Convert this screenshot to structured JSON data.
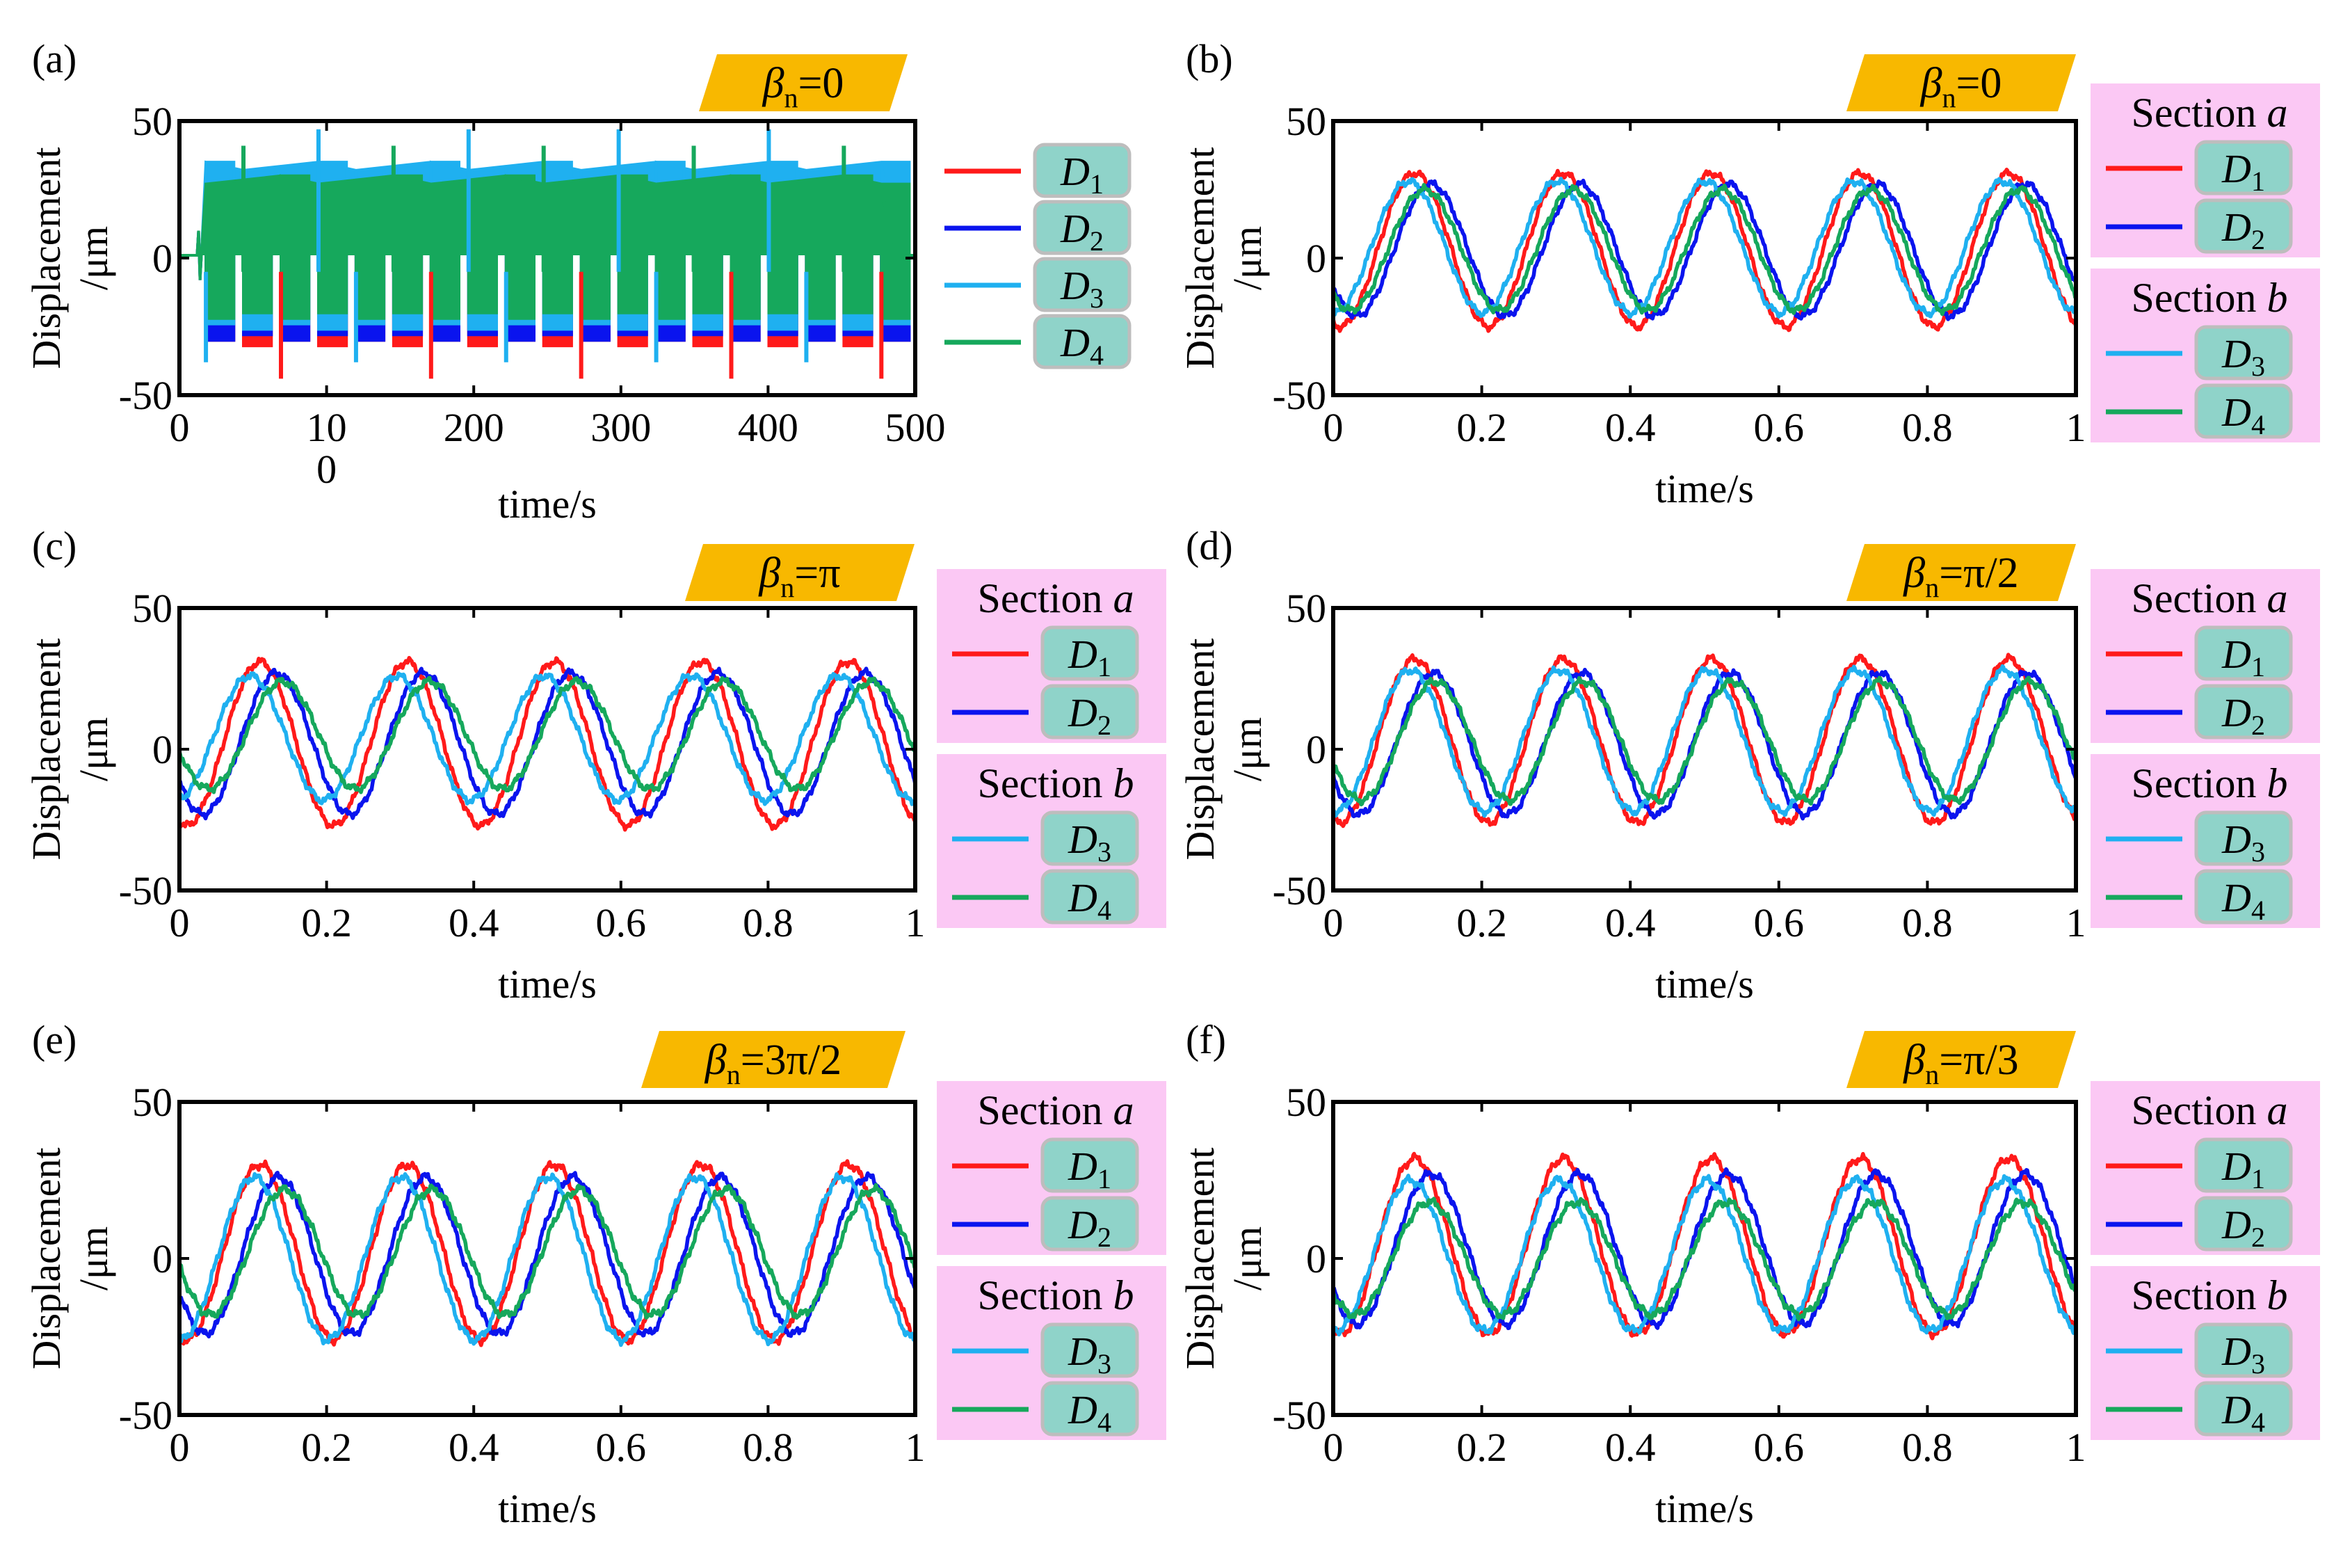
{
  "colors": {
    "D1": "#ff1a1a",
    "D2": "#0a14ee",
    "D3": "#1fb0f0",
    "D4": "#16a85c",
    "badge_bg": "#f8b800",
    "legend_bg": "#fbc8f4",
    "legend_key_bg": "#8fd3c9",
    "legend_key_border": "#bdbdbd"
  },
  "chart_data": [
    {
      "type": "line",
      "panel_label": "(a)",
      "badge": {
        "symbol": "β",
        "sub": "n",
        "value": "=0"
      },
      "xlabel": "time/s",
      "ylabel_1": "Displacement",
      "ylabel_2": "/μm",
      "xlim": [
        0,
        500
      ],
      "ylim": [
        -50,
        50
      ],
      "x_ticks": [
        "0",
        "10\n0",
        "200",
        "300",
        "400",
        "500"
      ],
      "x_tick_values": [
        0,
        100,
        200,
        300,
        400,
        500
      ],
      "y_ticks": [
        "-50",
        "0",
        "50"
      ],
      "y_tick_values": [
        -50,
        0,
        50
      ],
      "signal": "burst",
      "series": [
        {
          "name": "D1",
          "sub": "1",
          "amplitude": 30,
          "min": -30
        },
        {
          "name": "D2",
          "sub": "2",
          "amplitude": 28,
          "min": -28
        },
        {
          "name": "D3",
          "sub": "3",
          "amplitude": 32,
          "min": -24
        },
        {
          "name": "D4",
          "sub": "4",
          "amplitude": 27,
          "min": -20
        }
      ],
      "legend": {
        "sections": []
      }
    },
    {
      "type": "line",
      "panel_label": "(b)",
      "badge": {
        "symbol": "β",
        "sub": "n",
        "value": "=0"
      },
      "xlabel": "time/s",
      "ylabel_1": "Displacement",
      "ylabel_2": "/μm",
      "xlim": [
        0,
        1
      ],
      "ylim": [
        -50,
        50
      ],
      "x_ticks": [
        "0",
        "0.2",
        "0.4",
        "0.6",
        "0.8",
        "1"
      ],
      "x_tick_values": [
        0,
        0.2,
        0.4,
        0.6,
        0.8,
        1
      ],
      "y_ticks": [
        "-50",
        "0",
        "50"
      ],
      "y_tick_values": [
        -50,
        0,
        50
      ],
      "signal": "sine",
      "frequency_hz": 5,
      "series": [
        {
          "name": "D1",
          "sub": "1",
          "amplitude": 28,
          "offset": 3,
          "phase_deg": 0
        },
        {
          "name": "D2",
          "sub": "2",
          "amplitude": 24,
          "offset": 3,
          "phase_deg": -40
        },
        {
          "name": "D3",
          "sub": "3",
          "amplitude": 24,
          "offset": 4,
          "phase_deg": 15
        },
        {
          "name": "D4",
          "sub": "4",
          "amplitude": 22,
          "offset": 3,
          "phase_deg": -25
        }
      ],
      "legend": {
        "sections": [
          {
            "title": "Section ",
            "title_var": "a",
            "items": [
              "D1",
              "D2"
            ]
          },
          {
            "title": "Section ",
            "title_var": "b",
            "items": [
              "D3",
              "D4"
            ]
          }
        ]
      }
    },
    {
      "type": "line",
      "panel_label": "(c)",
      "badge": {
        "symbol": "β",
        "sub": "n",
        "value": "=π"
      },
      "xlabel": "time/s",
      "ylabel_1": "Displacement",
      "ylabel_2": "/μm",
      "xlim": [
        0,
        1
      ],
      "ylim": [
        -50,
        50
      ],
      "x_ticks": [
        "0",
        "0.2",
        "0.4",
        "0.6",
        "0.8",
        "1"
      ],
      "x_tick_values": [
        0,
        0.2,
        0.4,
        0.6,
        0.8,
        1
      ],
      "y_ticks": [
        "-50",
        "0",
        "50"
      ],
      "y_tick_values": [
        -50,
        0,
        50
      ],
      "signal": "sine",
      "frequency_hz": 5,
      "series": [
        {
          "name": "D1",
          "sub": "1",
          "amplitude": 29,
          "offset": 2,
          "phase_deg": 0
        },
        {
          "name": "D2",
          "sub": "2",
          "amplitude": 25,
          "offset": 2,
          "phase_deg": -40
        },
        {
          "name": "D3",
          "sub": "3",
          "amplitude": 22,
          "offset": 4,
          "phase_deg": 25
        },
        {
          "name": "D4",
          "sub": "4",
          "amplitude": 19,
          "offset": 5,
          "phase_deg": -55
        }
      ],
      "legend": {
        "sections": [
          {
            "title": "Section ",
            "title_var": "a",
            "items": [
              "D1",
              "D2"
            ]
          },
          {
            "title": "Section ",
            "title_var": "b",
            "items": [
              "D3",
              "D4"
            ]
          }
        ]
      }
    },
    {
      "type": "line",
      "panel_label": "(d)",
      "badge": {
        "symbol": "β",
        "sub": "n",
        "value": "=π/2"
      },
      "xlabel": "time/s",
      "ylabel_1": "Displacement",
      "ylabel_2": "/μm",
      "xlim": [
        0,
        1
      ],
      "ylim": [
        -50,
        50
      ],
      "x_ticks": [
        "0",
        "0.2",
        "0.4",
        "0.6",
        "0.8",
        "1"
      ],
      "x_tick_values": [
        0,
        0.2,
        0.4,
        0.6,
        0.8,
        1
      ],
      "y_ticks": [
        "-50",
        "0",
        "50"
      ],
      "y_tick_values": [
        -50,
        0,
        50
      ],
      "signal": "sine",
      "frequency_hz": 5,
      "series": [
        {
          "name": "D1",
          "sub": "1",
          "amplitude": 29,
          "offset": 3,
          "phase_deg": 0
        },
        {
          "name": "D2",
          "sub": "2",
          "amplitude": 25,
          "offset": 2,
          "phase_deg": -45
        },
        {
          "name": "D3",
          "sub": "3",
          "amplitude": 25,
          "offset": 3,
          "phase_deg": 10
        },
        {
          "name": "D4",
          "sub": "4",
          "amplitude": 21,
          "offset": 3,
          "phase_deg": -50
        }
      ],
      "legend": {
        "sections": [
          {
            "title": "Section ",
            "title_var": "a",
            "items": [
              "D1",
              "D2"
            ]
          },
          {
            "title": "Section ",
            "title_var": "b",
            "items": [
              "D3",
              "D4"
            ]
          }
        ]
      }
    },
    {
      "type": "line",
      "panel_label": "(e)",
      "badge": {
        "symbol": "β",
        "sub": "n",
        "value": "=3π/2"
      },
      "xlabel": "time/s",
      "ylabel_1": "Displacement",
      "ylabel_2": "/μm",
      "xlim": [
        0,
        1
      ],
      "ylim": [
        -50,
        50
      ],
      "x_ticks": [
        "0",
        "0.2",
        "0.4",
        "0.6",
        "0.8",
        "1"
      ],
      "x_tick_values": [
        0,
        0.2,
        0.4,
        0.6,
        0.8,
        1
      ],
      "y_ticks": [
        "-50",
        "0",
        "50"
      ],
      "y_tick_values": [
        -50,
        0,
        50
      ],
      "signal": "sine",
      "frequency_hz": 5,
      "series": [
        {
          "name": "D1",
          "sub": "1",
          "amplitude": 28,
          "offset": 2,
          "phase_deg": 0
        },
        {
          "name": "D2",
          "sub": "2",
          "amplitude": 25,
          "offset": 1,
          "phase_deg": -45
        },
        {
          "name": "D3",
          "sub": "3",
          "amplitude": 26,
          "offset": 0,
          "phase_deg": 15
        },
        {
          "name": "D4",
          "sub": "4",
          "amplitude": 20,
          "offset": 2,
          "phase_deg": -60
        }
      ],
      "legend": {
        "sections": [
          {
            "title": "Section ",
            "title_var": "a",
            "items": [
              "D1",
              "D2"
            ]
          },
          {
            "title": "Section ",
            "title_var": "b",
            "items": [
              "D3",
              "D4"
            ]
          }
        ]
      }
    },
    {
      "type": "line",
      "panel_label": "(f)",
      "badge": {
        "symbol": "β",
        "sub": "n",
        "value": "=π/3"
      },
      "xlabel": "time/s",
      "ylabel_1": "Displacement",
      "ylabel_2": "/μm",
      "xlim": [
        0,
        1
      ],
      "ylim": [
        -50,
        50
      ],
      "x_ticks": [
        "0",
        "0.2",
        "0.4",
        "0.6",
        "0.8",
        "1"
      ],
      "x_tick_values": [
        0,
        0.2,
        0.4,
        0.6,
        0.8,
        1
      ],
      "y_ticks": [
        "-50",
        "0",
        "50"
      ],
      "y_tick_values": [
        -50,
        0,
        50
      ],
      "signal": "sine",
      "frequency_hz": 5,
      "series": [
        {
          "name": "D1",
          "sub": "1",
          "amplitude": 28,
          "offset": 4,
          "phase_deg": 0
        },
        {
          "name": "D2",
          "sub": "2",
          "amplitude": 24,
          "offset": 3,
          "phase_deg": -40
        },
        {
          "name": "D3",
          "sub": "3",
          "amplitude": 24,
          "offset": 1,
          "phase_deg": 10
        },
        {
          "name": "D4",
          "sub": "4",
          "amplitude": 18,
          "offset": 0,
          "phase_deg": -35
        }
      ],
      "legend": {
        "sections": [
          {
            "title": "Section ",
            "title_var": "a",
            "items": [
              "D1",
              "D2"
            ]
          },
          {
            "title": "Section ",
            "title_var": "b",
            "items": [
              "D3",
              "D4"
            ]
          }
        ]
      }
    }
  ]
}
